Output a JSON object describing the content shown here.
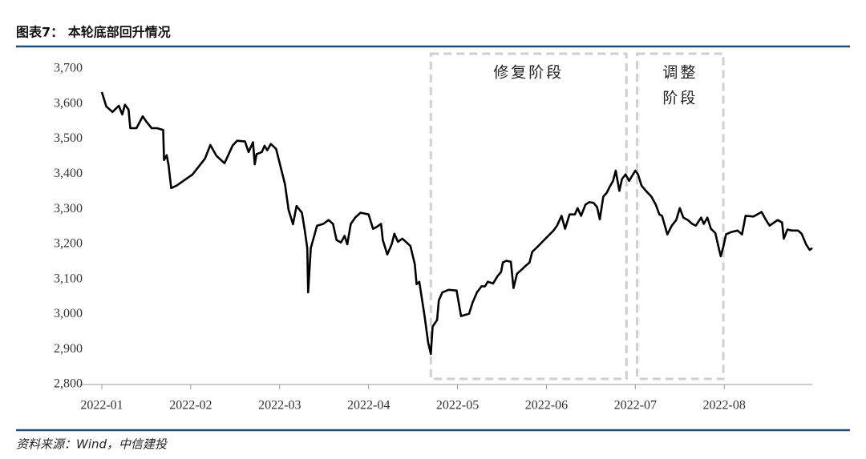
{
  "chart_data": {
    "type": "line",
    "title": "图表7： 本轮底部回升情况",
    "source": "资料来源：Wind，中信建投",
    "x": [
      1.0,
      1.05,
      1.12,
      1.19,
      1.23,
      1.26,
      1.3,
      1.32,
      1.39,
      1.46,
      1.5,
      1.56,
      1.62,
      1.69,
      1.7,
      1.73,
      1.75,
      1.78,
      1.84,
      2.02,
      2.16,
      2.22,
      2.29,
      2.38,
      2.47,
      2.52,
      2.61,
      2.65,
      2.7,
      2.72,
      2.74,
      2.8,
      2.83,
      2.86,
      2.9,
      2.96,
      3.06,
      3.1,
      3.15,
      3.19,
      3.25,
      3.28,
      3.31,
      3.32,
      3.35,
      3.42,
      3.49,
      3.55,
      3.6,
      3.64,
      3.69,
      3.73,
      3.76,
      3.8,
      3.85,
      3.91,
      4.0,
      4.05,
      4.09,
      4.14,
      4.16,
      4.21,
      4.26,
      4.29,
      4.33,
      4.38,
      4.47,
      4.52,
      4.54,
      4.57,
      4.61,
      4.63,
      4.67,
      4.7,
      4.72,
      4.77,
      4.79,
      4.83,
      4.9,
      4.99,
      5.04,
      5.13,
      5.17,
      5.22,
      5.27,
      5.31,
      5.34,
      5.4,
      5.45,
      5.49,
      5.51,
      5.55,
      5.6,
      5.63,
      5.67,
      5.72,
      5.76,
      5.81,
      5.84,
      5.9,
      5.99,
      6.08,
      6.12,
      6.17,
      6.21,
      6.26,
      6.32,
      6.35,
      6.39,
      6.44,
      6.48,
      6.53,
      6.57,
      6.6,
      6.64,
      6.68,
      6.71,
      6.75,
      6.78,
      6.82,
      6.85,
      6.89,
      6.93,
      7.0,
      7.03,
      7.07,
      7.12,
      7.18,
      7.23,
      7.27,
      7.3,
      7.36,
      7.41,
      7.46,
      7.5,
      7.54,
      7.59,
      7.64,
      7.68,
      7.74,
      7.77,
      7.81,
      7.85,
      7.9,
      7.93,
      7.96,
      7.99,
      8.02,
      8.08,
      8.15,
      8.2,
      8.24,
      8.33,
      8.42,
      8.47,
      8.51,
      8.6,
      8.65,
      8.67,
      8.71,
      8.76,
      8.83,
      8.87,
      8.92,
      8.96,
      8.99
    ],
    "values": [
      3634,
      3593,
      3577,
      3595,
      3570,
      3598,
      3584,
      3531,
      3531,
      3565,
      3550,
      3531,
      3531,
      3526,
      3440,
      3454,
      3426,
      3360,
      3367,
      3399,
      3444,
      3483,
      3452,
      3431,
      3481,
      3495,
      3493,
      3463,
      3491,
      3428,
      3457,
      3463,
      3481,
      3468,
      3486,
      3472,
      3371,
      3298,
      3257,
      3309,
      3290,
      3244,
      3189,
      3063,
      3189,
      3253,
      3258,
      3269,
      3258,
      3212,
      3205,
      3224,
      3200,
      3258,
      3276,
      3290,
      3285,
      3244,
      3249,
      3258,
      3212,
      3171,
      3200,
      3230,
      3207,
      3216,
      3195,
      3143,
      3086,
      3093,
      3028,
      2995,
      2919,
      2887,
      2965,
      2984,
      3040,
      3063,
      3070,
      3068,
      2995,
      3002,
      3034,
      3063,
      3080,
      3080,
      3093,
      3088,
      3109,
      3121,
      3148,
      3153,
      3150,
      3075,
      3116,
      3127,
      3137,
      3148,
      3178,
      3193,
      3216,
      3239,
      3253,
      3281,
      3244,
      3285,
      3285,
      3303,
      3281,
      3313,
      3320,
      3318,
      3306,
      3271,
      3336,
      3347,
      3363,
      3381,
      3410,
      3352,
      3386,
      3399,
      3381,
      3410,
      3399,
      3367,
      3352,
      3336,
      3313,
      3285,
      3281,
      3228,
      3253,
      3269,
      3303,
      3276,
      3269,
      3258,
      3253,
      3276,
      3258,
      3276,
      3244,
      3232,
      3198,
      3166,
      3193,
      3228,
      3235,
      3239,
      3228,
      3281,
      3279,
      3292,
      3269,
      3253,
      3269,
      3262,
      3216,
      3242,
      3239,
      3239,
      3230,
      3200,
      3184,
      3189
    ],
    "color": "#000000",
    "xlim": [
      1,
      8.99
    ],
    "xticks": [
      {
        "value": 1,
        "label": "2022-01"
      },
      {
        "value": 2,
        "label": "2022-02"
      },
      {
        "value": 3,
        "label": "2022-03"
      },
      {
        "value": 4,
        "label": "2022-04"
      },
      {
        "value": 5,
        "label": "2022-05"
      },
      {
        "value": 6,
        "label": "2022-06"
      },
      {
        "value": 7,
        "label": "2022-07"
      },
      {
        "value": 8,
        "label": "2022-08"
      }
    ],
    "ylim": [
      2800,
      3700
    ],
    "yticks": [
      {
        "value": 2800,
        "label": "2,800"
      },
      {
        "value": 2900,
        "label": "2,900"
      },
      {
        "value": 3000,
        "label": "3,000"
      },
      {
        "value": 3100,
        "label": "3,100"
      },
      {
        "value": 3200,
        "label": "3,200"
      },
      {
        "value": 3300,
        "label": "3,300"
      },
      {
        "value": 3400,
        "label": "3,400"
      },
      {
        "value": 3500,
        "label": "3,500"
      },
      {
        "value": 3600,
        "label": "3,600"
      },
      {
        "value": 3700,
        "label": "3,700"
      }
    ],
    "grid": false,
    "annotations": [
      {
        "text": [
          "修复阶段"
        ],
        "x": [
          4.7,
          6.9
        ]
      },
      {
        "text": [
          "调整",
          "阶段"
        ],
        "x": [
          7.02,
          7.99
        ]
      }
    ]
  }
}
